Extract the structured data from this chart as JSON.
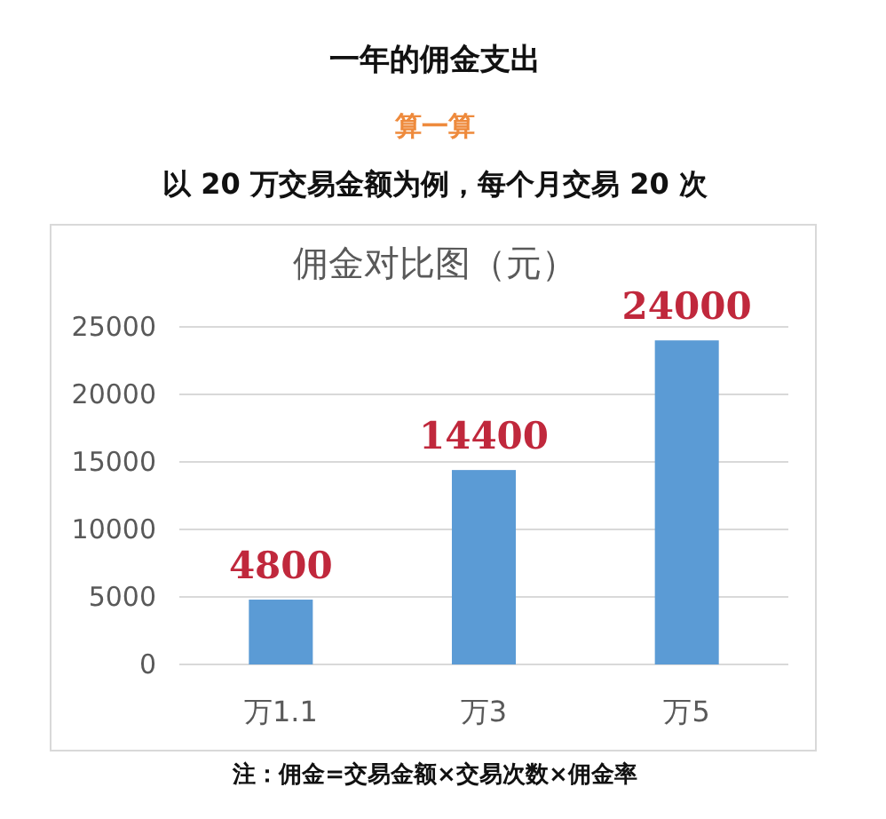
{
  "chart_data": {
    "type": "bar",
    "title": "一年的佣金支出",
    "subtitle": "以 20 万交易金额为例，每个月交易 20 次",
    "annotations": [
      "算一算",
      "佣金对比图（元）",
      "注：佣金=交易金额×交易次数×佣金率"
    ],
    "categories": [
      "万1.1",
      "万3",
      "万5"
    ],
    "values": [
      4800,
      14400,
      24000
    ],
    "color": "#5b9bd5",
    "ylim": [
      0,
      25000
    ],
    "yticks": [
      0,
      5000,
      10000,
      15000,
      20000,
      25000
    ],
    "grid": "y",
    "data_labels": true
  }
}
